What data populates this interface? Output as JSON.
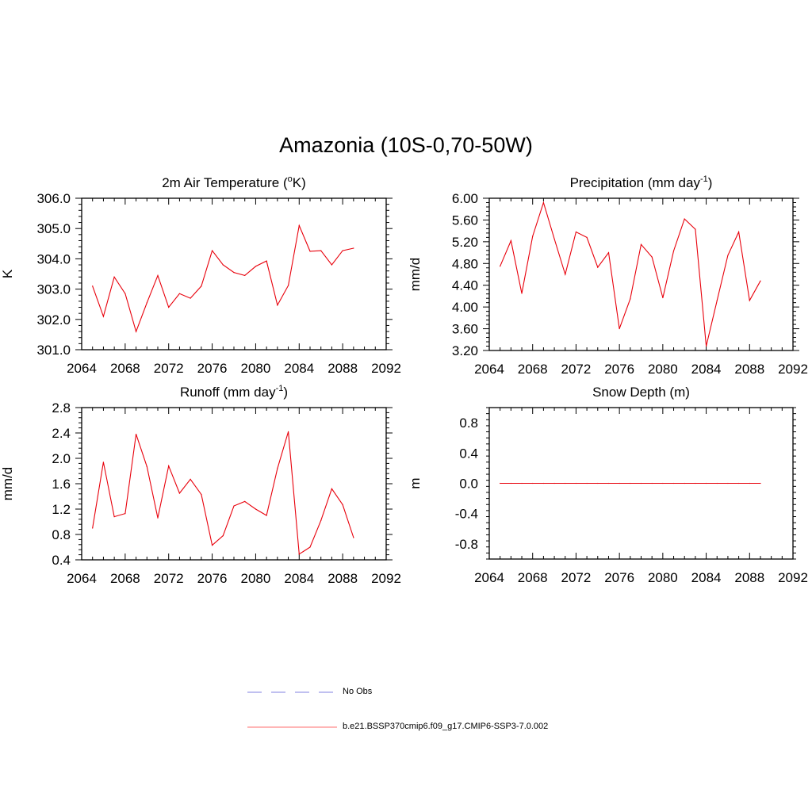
{
  "title": "Amazonia (10S-0,70-50W)",
  "line_color": "#e8000b",
  "legend": [
    {
      "label": "No Obs",
      "style": "dashed",
      "color": "#9a9ae8"
    },
    {
      "label": "b.e21.BSSP370cmip6.f09_g17.CMIP6-SSP3-7.0.002",
      "style": "solid",
      "color": "#ff8a8a"
    }
  ],
  "chart_data": [
    {
      "type": "line",
      "title": "2m Air Temperature (",
      "title_sup": "o",
      "title_tail": "K)",
      "ylabel": "K",
      "x": [
        2065,
        2066,
        2067,
        2068,
        2069,
        2070,
        2071,
        2072,
        2073,
        2074,
        2075,
        2076,
        2077,
        2078,
        2079,
        2080,
        2081,
        2082,
        2083,
        2084,
        2085,
        2086,
        2087,
        2088,
        2089
      ],
      "values": [
        303.1,
        302.1,
        303.4,
        302.85,
        301.6,
        302.55,
        303.45,
        302.4,
        302.85,
        302.7,
        303.1,
        304.27,
        303.8,
        303.55,
        303.45,
        303.75,
        303.93,
        302.47,
        303.12,
        305.1,
        304.25,
        304.27,
        303.8,
        304.27,
        304.35
      ],
      "xlim": [
        2064,
        2092
      ],
      "ylim": [
        301.0,
        306.0
      ],
      "xticks": [
        "2064",
        "2068",
        "2072",
        "2076",
        "2080",
        "2084",
        "2088",
        "2092"
      ],
      "yticks": [
        "301.0",
        "302.0",
        "303.0",
        "304.0",
        "305.0",
        "306.0"
      ]
    },
    {
      "type": "line",
      "title": "Precipitation (mm day",
      "title_sup": "-1",
      "title_tail": ")",
      "ylabel": "mm/d",
      "x": [
        2065,
        2066,
        2067,
        2068,
        2069,
        2070,
        2071,
        2072,
        2073,
        2074,
        2075,
        2076,
        2077,
        2078,
        2079,
        2080,
        2081,
        2082,
        2083,
        2084,
        2085,
        2086,
        2087,
        2088,
        2089
      ],
      "values": [
        4.75,
        5.22,
        4.25,
        5.3,
        5.92,
        5.25,
        4.6,
        5.38,
        5.28,
        4.73,
        5.0,
        3.6,
        4.15,
        5.15,
        4.92,
        4.17,
        5.03,
        5.62,
        5.43,
        3.28,
        4.12,
        4.95,
        5.38,
        4.12,
        4.48
      ],
      "xlim": [
        2064,
        2092
      ],
      "ylim": [
        3.2,
        6.0
      ],
      "xticks": [
        "2064",
        "2068",
        "2072",
        "2076",
        "2080",
        "2084",
        "2088",
        "2092"
      ],
      "yticks": [
        "3.20",
        "3.60",
        "4.00",
        "4.40",
        "4.80",
        "5.20",
        "5.60",
        "6.00"
      ]
    },
    {
      "type": "line",
      "title": "Runoff (mm day",
      "title_sup": "-1",
      "title_tail": ")",
      "ylabel": "mm/d",
      "x": [
        2065,
        2066,
        2067,
        2068,
        2069,
        2070,
        2071,
        2072,
        2073,
        2074,
        2075,
        2076,
        2077,
        2078,
        2079,
        2080,
        2081,
        2082,
        2083,
        2084,
        2085,
        2086,
        2087,
        2088,
        2089
      ],
      "values": [
        0.9,
        1.94,
        1.08,
        1.13,
        2.38,
        1.87,
        1.06,
        1.88,
        1.45,
        1.67,
        1.43,
        0.63,
        0.78,
        1.25,
        1.32,
        1.2,
        1.1,
        1.84,
        2.42,
        0.49,
        0.6,
        1.02,
        1.52,
        1.27,
        0.75
      ],
      "xlim": [
        2064,
        2092
      ],
      "ylim": [
        0.4,
        2.8
      ],
      "xticks": [
        "2064",
        "2068",
        "2072",
        "2076",
        "2080",
        "2084",
        "2088",
        "2092"
      ],
      "yticks": [
        "0.4",
        "0.8",
        "1.2",
        "1.6",
        "2.0",
        "2.4",
        "2.8"
      ]
    },
    {
      "type": "line",
      "title": "Snow Depth (m)",
      "title_sup": "",
      "title_tail": "",
      "ylabel": "m",
      "x": [
        2065,
        2066,
        2067,
        2068,
        2069,
        2070,
        2071,
        2072,
        2073,
        2074,
        2075,
        2076,
        2077,
        2078,
        2079,
        2080,
        2081,
        2082,
        2083,
        2084,
        2085,
        2086,
        2087,
        2088,
        2089
      ],
      "values": [
        0,
        0,
        0,
        0,
        0,
        0,
        0,
        0,
        0,
        0,
        0,
        0,
        0,
        0,
        0,
        0,
        0,
        0,
        0,
        0,
        0,
        0,
        0,
        0,
        0
      ],
      "xlim": [
        2064,
        2092
      ],
      "ylim": [
        -1.0,
        1.0
      ],
      "xticks": [
        "2064",
        "2068",
        "2072",
        "2076",
        "2080",
        "2084",
        "2088",
        "2092"
      ],
      "yticks": [
        "-0.8",
        "-0.4",
        "0.0",
        "0.4",
        "0.8"
      ],
      "ytick_values": [
        -0.8,
        -0.4,
        0.0,
        0.4,
        0.8
      ]
    }
  ]
}
